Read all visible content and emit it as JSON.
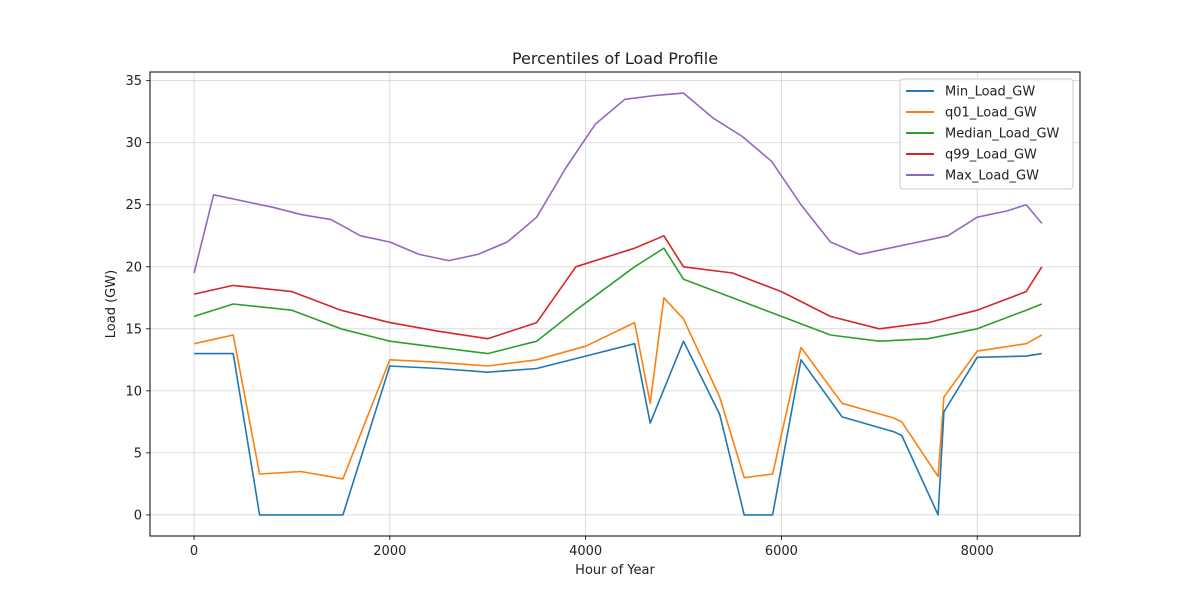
{
  "chart_data": {
    "type": "line",
    "title": "Percentiles of Load Profile",
    "xlabel": "Hour of Year",
    "ylabel": "Load (GW)",
    "xlim": [
      -450,
      9050
    ],
    "ylim": [
      -1.7,
      35.7
    ],
    "xticks": [
      0,
      2000,
      4000,
      6000,
      8000
    ],
    "yticks": [
      0,
      5,
      10,
      15,
      20,
      25,
      30,
      35
    ],
    "grid": true,
    "legend_position": "top-right",
    "series": [
      {
        "name": "Min_Load_GW",
        "color": "#1f77b4",
        "x": [
          0,
          400,
          670,
          1090,
          1520,
          2000,
          2500,
          3000,
          3500,
          4000,
          4500,
          4660,
          5000,
          5370,
          5620,
          5910,
          6200,
          6620,
          7150,
          7230,
          7600,
          7660,
          8000,
          8500,
          8660
        ],
        "values": [
          13.0,
          13.0,
          0.0,
          0.0,
          0.0,
          12.0,
          11.8,
          11.5,
          11.8,
          12.8,
          13.8,
          7.4,
          14.0,
          8.1,
          0.0,
          0.0,
          12.5,
          7.9,
          6.7,
          6.4,
          0.0,
          8.3,
          12.7,
          12.8,
          13.0
        ]
      },
      {
        "name": "q01_Load_GW",
        "color": "#ff7f0e",
        "x": [
          0,
          400,
          670,
          1090,
          1520,
          2000,
          2500,
          3000,
          3500,
          4000,
          4500,
          4660,
          4800,
          5000,
          5370,
          5620,
          5910,
          6200,
          6620,
          7150,
          7230,
          7600,
          7660,
          8000,
          8500,
          8660
        ],
        "values": [
          13.8,
          14.5,
          3.3,
          3.5,
          2.9,
          12.5,
          12.3,
          12.0,
          12.5,
          13.6,
          15.5,
          9.0,
          17.5,
          15.8,
          9.5,
          3.0,
          3.3,
          13.5,
          9.0,
          7.8,
          7.5,
          3.1,
          9.5,
          13.2,
          13.8,
          14.5
        ]
      },
      {
        "name": "Median_Load_GW",
        "color": "#2ca02c",
        "x": [
          0,
          400,
          1000,
          1500,
          2000,
          2500,
          3000,
          3500,
          3900,
          4500,
          4800,
          5000,
          5500,
          6000,
          6500,
          7000,
          7500,
          8000,
          8500,
          8660
        ],
        "values": [
          16.0,
          17.0,
          16.5,
          15.0,
          14.0,
          13.5,
          13.0,
          14.0,
          16.5,
          20.0,
          21.5,
          19.0,
          17.5,
          16.0,
          14.5,
          14.0,
          14.2,
          15.0,
          16.5,
          17.0
        ]
      },
      {
        "name": "q99_Load_GW",
        "color": "#d62728",
        "x": [
          0,
          400,
          1000,
          1500,
          2000,
          2500,
          3000,
          3500,
          3900,
          4500,
          4800,
          5000,
          5500,
          6000,
          6500,
          7000,
          7500,
          8000,
          8500,
          8660
        ],
        "values": [
          17.8,
          18.5,
          18.0,
          16.5,
          15.5,
          14.8,
          14.2,
          15.5,
          20.0,
          21.5,
          22.5,
          20.0,
          19.5,
          18.0,
          16.0,
          15.0,
          15.5,
          16.5,
          18.0,
          20.0
        ]
      },
      {
        "name": "Max_Load_GW",
        "color": "#9467bd",
        "x": [
          0,
          200,
          500,
          800,
          1100,
          1400,
          1700,
          2000,
          2300,
          2600,
          2900,
          3200,
          3500,
          3800,
          4100,
          4400,
          4700,
          5000,
          5300,
          5600,
          5900,
          6200,
          6500,
          6800,
          7100,
          7400,
          7700,
          8000,
          8300,
          8500,
          8660
        ],
        "values": [
          19.5,
          25.8,
          25.3,
          24.8,
          24.2,
          23.8,
          22.5,
          22.0,
          21.0,
          20.5,
          21.0,
          22.0,
          24.0,
          28.0,
          31.5,
          33.5,
          33.8,
          34.0,
          32.0,
          30.5,
          28.5,
          25.0,
          22.0,
          21.0,
          21.5,
          22.0,
          22.5,
          24.0,
          24.5,
          25.0,
          23.5
        ]
      }
    ]
  }
}
